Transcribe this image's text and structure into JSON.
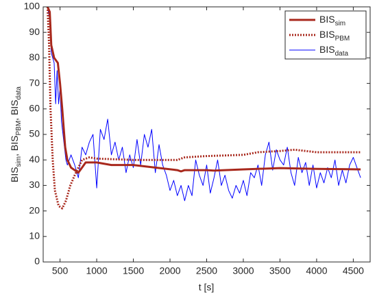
{
  "chart_data": {
    "type": "line",
    "xlabel": "t [s]",
    "ylabel": "BISsim, BISPBM, BISdata",
    "xlim": [
      270,
      4730
    ],
    "ylim": [
      0,
      100
    ],
    "xticks": [
      500,
      1000,
      1500,
      2000,
      2500,
      3000,
      3500,
      4000,
      4500
    ],
    "yticks": [
      0,
      10,
      20,
      30,
      40,
      50,
      60,
      70,
      80,
      90,
      100
    ],
    "legend": "upper right",
    "series": [
      {
        "name": "BISsim",
        "color": "#a8281c",
        "style": "solid",
        "width": 3,
        "x": [
          330,
          360,
          380,
          420,
          470,
          500,
          530,
          570,
          600,
          650,
          700,
          750,
          800,
          850,
          1000,
          1200,
          1500,
          1800,
          2100,
          2150,
          2200,
          2500,
          2600,
          3000,
          3500,
          4000,
          4600
        ],
        "values": [
          100,
          98,
          85,
          80,
          78,
          70,
          60,
          45,
          40,
          37,
          36,
          35,
          37,
          39,
          39,
          38,
          38,
          37,
          36,
          35.5,
          36,
          36,
          35.8,
          36.3,
          36.8,
          36.5,
          36.3
        ]
      },
      {
        "name": "BISPBM",
        "color": "#a8281c",
        "style": "dotted",
        "width": 3,
        "x": [
          330,
          350,
          370,
          400,
          430,
          480,
          530,
          580,
          640,
          700,
          750,
          800,
          900,
          1000,
          1500,
          2000,
          2100,
          2200,
          2500,
          3000,
          3200,
          3500,
          3700,
          4000,
          4600
        ],
        "values": [
          100,
          85,
          60,
          40,
          28,
          22,
          21,
          24,
          30,
          34,
          37,
          40,
          41,
          40.5,
          40,
          40,
          40,
          41,
          41.5,
          42,
          43,
          43.5,
          44,
          43,
          43
        ]
      },
      {
        "name": "BISdata",
        "color": "#0000ff",
        "style": "solid",
        "width": 1,
        "x": [
          330,
          360,
          380,
          400,
          420,
          440,
          460,
          480,
          500,
          520,
          540,
          560,
          580,
          600,
          650,
          700,
          750,
          800,
          850,
          900,
          950,
          1000,
          1050,
          1100,
          1150,
          1200,
          1250,
          1300,
          1350,
          1400,
          1450,
          1500,
          1550,
          1600,
          1650,
          1700,
          1750,
          1800,
          1850,
          1900,
          1950,
          2000,
          2050,
          2100,
          2150,
          2200,
          2250,
          2300,
          2350,
          2400,
          2450,
          2500,
          2550,
          2600,
          2650,
          2700,
          2750,
          2800,
          2850,
          2900,
          2950,
          3000,
          3050,
          3100,
          3150,
          3200,
          3250,
          3300,
          3350,
          3400,
          3450,
          3500,
          3550,
          3600,
          3650,
          3700,
          3750,
          3800,
          3850,
          3900,
          3950,
          4000,
          4050,
          4100,
          4150,
          4200,
          4250,
          4300,
          4350,
          4400,
          4450,
          4500,
          4550,
          4600
        ],
        "values": [
          100,
          95,
          82,
          80,
          78,
          62,
          75,
          62,
          68,
          55,
          50,
          45,
          40,
          38,
          42,
          38,
          33,
          45,
          42,
          47,
          50,
          29,
          52,
          48,
          56,
          42,
          47,
          40,
          45,
          35,
          42,
          37,
          48,
          38,
          50,
          45,
          52,
          35,
          46,
          38,
          34,
          28,
          32,
          26,
          30,
          24,
          30,
          26,
          40,
          34,
          30,
          38,
          27,
          33,
          40,
          30,
          34,
          28,
          25,
          30,
          27,
          32,
          26,
          35,
          33,
          38,
          30,
          42,
          47,
          36,
          44,
          40,
          38,
          45,
          35,
          30,
          41,
          35,
          39,
          30,
          38,
          29,
          35,
          31,
          37,
          33,
          40,
          30,
          36,
          31,
          38,
          41,
          37,
          33
        ]
      }
    ]
  }
}
